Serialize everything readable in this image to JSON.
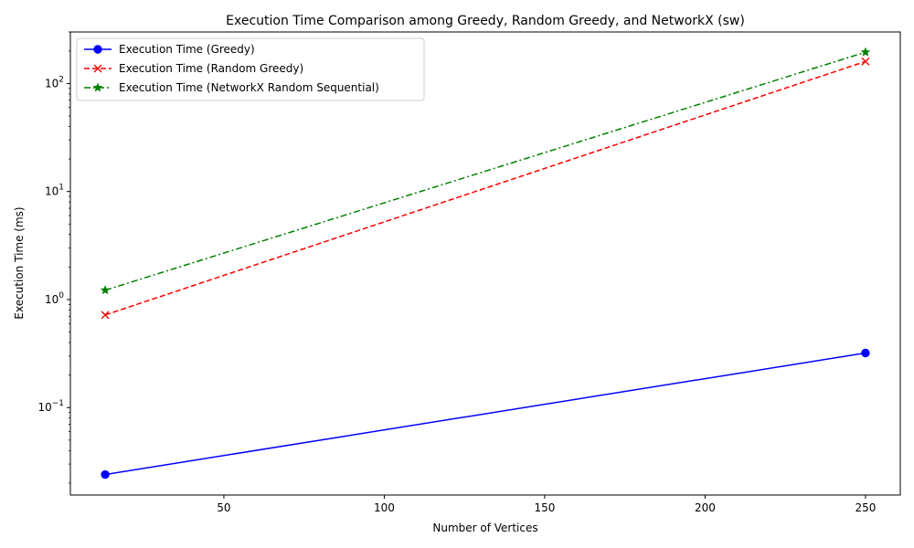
{
  "chart_data": {
    "type": "line",
    "title": "Execution Time Comparison among Greedy, Random Greedy, and NetworkX (sw)",
    "xlabel": "Number of Vertices",
    "ylabel": "Execution Time (ms)",
    "xlim": [
      2.15,
      260.85
    ],
    "ylim": [
      0.0155,
      300
    ],
    "yscale": "log",
    "grid": false,
    "legend_position": "top-left",
    "x_ticks": [
      50,
      100,
      150,
      200,
      250
    ],
    "y_ticks": [
      {
        "value": 0.1,
        "base": "10",
        "exp": "−1"
      },
      {
        "value": 1,
        "base": "10",
        "exp": "0"
      },
      {
        "value": 10,
        "base": "10",
        "exp": "1"
      },
      {
        "value": 100,
        "base": "10",
        "exp": "2"
      }
    ],
    "series": [
      {
        "name": "Execution Time (Greedy)",
        "color": "#0000ff",
        "dash": "solid",
        "marker": "circle",
        "x": [
          13,
          250
        ],
        "y": [
          0.024,
          0.32
        ]
      },
      {
        "name": "Execution Time (Random Greedy)",
        "color": "#ff0000",
        "dash": "dashed",
        "marker": "x",
        "x": [
          13,
          250
        ],
        "y": [
          0.72,
          160
        ]
      },
      {
        "name": "Execution Time (NetworkX Random Sequential)",
        "color": "#008000",
        "dash": "dashdot",
        "marker": "star",
        "x": [
          13,
          250
        ],
        "y": [
          1.22,
          195
        ]
      }
    ]
  }
}
